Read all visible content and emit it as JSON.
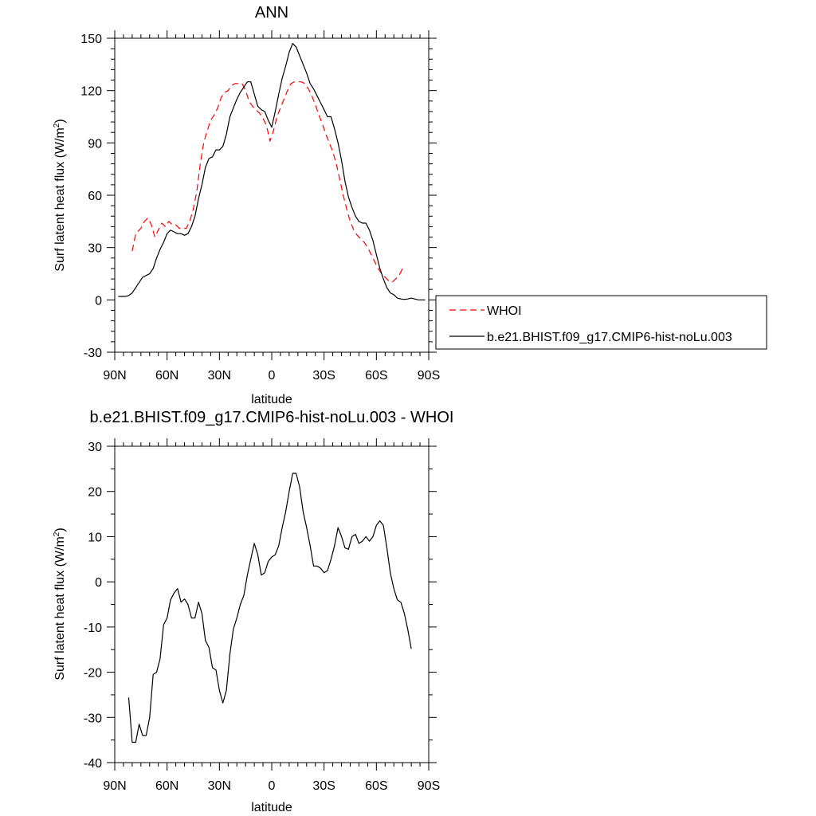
{
  "chart_data": [
    {
      "type": "line",
      "title": "ANN",
      "xlabel": "latitude",
      "ylabel": "Surf latent heat flux (W/m",
      "ylabel_sup": "2",
      "ylabel_close": ")",
      "xlim": [
        -90,
        90
      ],
      "ylim": [
        -30,
        150
      ],
      "x_direction": "north-to-south",
      "xticks": [
        {
          "v": -90,
          "label": "90N"
        },
        {
          "v": -60,
          "label": "60N"
        },
        {
          "v": -30,
          "label": "30N"
        },
        {
          "v": 0,
          "label": "0"
        },
        {
          "v": 30,
          "label": "30S"
        },
        {
          "v": 60,
          "label": "60S"
        },
        {
          "v": 90,
          "label": "90S"
        }
      ],
      "yticks": [
        {
          "v": -30,
          "label": "-30"
        },
        {
          "v": 0,
          "label": "0"
        },
        {
          "v": 30,
          "label": "30"
        },
        {
          "v": 60,
          "label": "60"
        },
        {
          "v": 90,
          "label": "90"
        },
        {
          "v": 120,
          "label": "120"
        },
        {
          "v": 150,
          "label": "150"
        }
      ],
      "grid": false,
      "legend_placement": "right",
      "series": [
        {
          "name": "WHOI",
          "color": "#ff0000",
          "dash": "dashed",
          "points": [
            [
              -80,
              28
            ],
            [
              -78,
              38
            ],
            [
              -76,
              40
            ],
            [
              -75,
              41
            ],
            [
              -73,
              45
            ],
            [
              -71,
              47
            ],
            [
              -69,
              43
            ],
            [
              -67,
              36
            ],
            [
              -65,
              40
            ],
            [
              -63,
              44
            ],
            [
              -61,
              42
            ],
            [
              -59,
              45
            ],
            [
              -57,
              43
            ],
            [
              -55,
              43
            ],
            [
              -53,
              41
            ],
            [
              -51,
              41
            ],
            [
              -49,
              41
            ],
            [
              -47,
              45
            ],
            [
              -45,
              52
            ],
            [
              -43,
              62
            ],
            [
              -41,
              78
            ],
            [
              -39,
              90
            ],
            [
              -37,
              97
            ],
            [
              -35,
              103
            ],
            [
              -33,
              106
            ],
            [
              -31,
              110
            ],
            [
              -29,
              116
            ],
            [
              -27,
              119
            ],
            [
              -25,
              120
            ],
            [
              -23,
              123
            ],
            [
              -21,
              124
            ],
            [
              -19,
              124
            ],
            [
              -17,
              124
            ],
            [
              -15,
              120
            ],
            [
              -13,
              114
            ],
            [
              -11,
              111
            ],
            [
              -9,
              109
            ],
            [
              -7,
              107
            ],
            [
              -5,
              104
            ],
            [
              -3,
              100
            ],
            [
              -1,
              91
            ],
            [
              1,
              97
            ],
            [
              3,
              105
            ],
            [
              5,
              110
            ],
            [
              7,
              115
            ],
            [
              9,
              120
            ],
            [
              11,
              124
            ],
            [
              13,
              125
            ],
            [
              15,
              125
            ],
            [
              17,
              125
            ],
            [
              19,
              124
            ],
            [
              21,
              121
            ],
            [
              23,
              117
            ],
            [
              25,
              112
            ],
            [
              27,
              106
            ],
            [
              29,
              101
            ],
            [
              31,
              95
            ],
            [
              33,
              90
            ],
            [
              35,
              85
            ],
            [
              37,
              78
            ],
            [
              39,
              69
            ],
            [
              41,
              60
            ],
            [
              43,
              52
            ],
            [
              45,
              45
            ],
            [
              47,
              40
            ],
            [
              49,
              37
            ],
            [
              51,
              35
            ],
            [
              53,
              33
            ],
            [
              55,
              30
            ],
            [
              57,
              26
            ],
            [
              59,
              22
            ],
            [
              61,
              18
            ],
            [
              63,
              15
            ],
            [
              65,
              13
            ],
            [
              67,
              11
            ],
            [
              69,
              10
            ],
            [
              71,
              12
            ],
            [
              73,
              14
            ],
            [
              75,
              18
            ]
          ]
        },
        {
          "name": "b.e21.BHIST.f09_g17.CMIP6-hist-noLu.003",
          "color": "#000000",
          "dash": "solid",
          "points": [
            [
              -88,
              2
            ],
            [
              -86,
              2
            ],
            [
              -84,
              2
            ],
            [
              -82,
              2.5
            ],
            [
              -80,
              4
            ],
            [
              -78,
              7
            ],
            [
              -76,
              10
            ],
            [
              -74,
              13
            ],
            [
              -72,
              14
            ],
            [
              -70,
              15
            ],
            [
              -68,
              18
            ],
            [
              -66,
              24
            ],
            [
              -64,
              29
            ],
            [
              -62,
              33
            ],
            [
              -60,
              38
            ],
            [
              -58,
              40
            ],
            [
              -56,
              39
            ],
            [
              -54,
              38
            ],
            [
              -52,
              38
            ],
            [
              -50,
              37
            ],
            [
              -48,
              38
            ],
            [
              -46,
              42
            ],
            [
              -44,
              48
            ],
            [
              -42,
              58
            ],
            [
              -40,
              66
            ],
            [
              -38,
              76
            ],
            [
              -36,
              81
            ],
            [
              -34,
              82
            ],
            [
              -32,
              86
            ],
            [
              -30,
              86
            ],
            [
              -28,
              88
            ],
            [
              -26,
              95
            ],
            [
              -24,
              105
            ],
            [
              -22,
              110
            ],
            [
              -20,
              115
            ],
            [
              -18,
              119
            ],
            [
              -16,
              122
            ],
            [
              -14,
              125
            ],
            [
              -12,
              125
            ],
            [
              -10,
              118
            ],
            [
              -8,
              111
            ],
            [
              -6,
              109
            ],
            [
              -4,
              108
            ],
            [
              -2,
              103
            ],
            [
              0,
              99
            ],
            [
              2,
              108
            ],
            [
              4,
              118
            ],
            [
              6,
              127
            ],
            [
              8,
              134
            ],
            [
              10,
              142
            ],
            [
              12,
              147
            ],
            [
              14,
              145
            ],
            [
              16,
              140
            ],
            [
              18,
              135
            ],
            [
              20,
              130
            ],
            [
              22,
              124
            ],
            [
              24,
              121
            ],
            [
              26,
              117
            ],
            [
              28,
              113
            ],
            [
              30,
              109
            ],
            [
              32,
              105
            ],
            [
              34,
              105
            ],
            [
              36,
              98
            ],
            [
              38,
              90
            ],
            [
              40,
              80
            ],
            [
              42,
              68
            ],
            [
              44,
              59
            ],
            [
              46,
              53
            ],
            [
              48,
              48
            ],
            [
              50,
              45
            ],
            [
              52,
              44
            ],
            [
              54,
              44
            ],
            [
              56,
              40
            ],
            [
              58,
              34
            ],
            [
              60,
              26
            ],
            [
              62,
              18
            ],
            [
              64,
              12
            ],
            [
              66,
              7
            ],
            [
              68,
              4
            ],
            [
              70,
              3
            ],
            [
              72,
              1
            ],
            [
              74,
              0.5
            ],
            [
              76,
              0.3
            ],
            [
              78,
              0.5
            ],
            [
              80,
              1
            ],
            [
              82,
              0.5
            ],
            [
              84,
              0
            ],
            [
              86,
              0
            ],
            [
              88,
              0
            ]
          ]
        }
      ]
    },
    {
      "type": "line",
      "title": "b.e21.BHIST.f09_g17.CMIP6-hist-noLu.003 - WHOI",
      "xlabel": "latitude",
      "ylabel": "Surf latent heat flux (W/m",
      "ylabel_sup": "2",
      "ylabel_close": ")",
      "xlim": [
        -90,
        90
      ],
      "ylim": [
        -40,
        30
      ],
      "x_direction": "north-to-south",
      "xticks": [
        {
          "v": -90,
          "label": "90N"
        },
        {
          "v": -60,
          "label": "60N"
        },
        {
          "v": -30,
          "label": "30N"
        },
        {
          "v": 0,
          "label": "0"
        },
        {
          "v": 30,
          "label": "30S"
        },
        {
          "v": 60,
          "label": "60S"
        },
        {
          "v": 90,
          "label": "90S"
        }
      ],
      "yticks": [
        {
          "v": -40,
          "label": "-40"
        },
        {
          "v": -30,
          "label": "-30"
        },
        {
          "v": -20,
          "label": "-20"
        },
        {
          "v": -10,
          "label": "-10"
        },
        {
          "v": 0,
          "label": "0"
        },
        {
          "v": 10,
          "label": "10"
        },
        {
          "v": 20,
          "label": "20"
        },
        {
          "v": 30,
          "label": "30"
        }
      ],
      "grid": false,
      "series": [
        {
          "color": "#000000",
          "dash": "solid",
          "points": [
            [
              -82,
              -25.6
            ],
            [
              -80,
              -35.5
            ],
            [
              -78,
              -35.5
            ],
            [
              -76,
              -31.5
            ],
            [
              -74,
              -34
            ],
            [
              -72,
              -34
            ],
            [
              -70,
              -30
            ],
            [
              -68,
              -20.5
            ],
            [
              -66,
              -20
            ],
            [
              -64,
              -17
            ],
            [
              -62,
              -9.5
            ],
            [
              -60,
              -8
            ],
            [
              -58,
              -4
            ],
            [
              -56,
              -2.5
            ],
            [
              -54,
              -1.5
            ],
            [
              -52,
              -4.5
            ],
            [
              -50,
              -3.8
            ],
            [
              -48,
              -5
            ],
            [
              -46,
              -8
            ],
            [
              -44,
              -8
            ],
            [
              -42,
              -4.5
            ],
            [
              -40,
              -7
            ],
            [
              -38,
              -13
            ],
            [
              -36,
              -14.5
            ],
            [
              -34,
              -19
            ],
            [
              -32,
              -19.5
            ],
            [
              -30,
              -24
            ],
            [
              -28,
              -26.8
            ],
            [
              -26,
              -24
            ],
            [
              -24,
              -16
            ],
            [
              -22,
              -10.5
            ],
            [
              -20,
              -8
            ],
            [
              -18,
              -5
            ],
            [
              -16,
              -3
            ],
            [
              -14,
              1.5
            ],
            [
              -12,
              5
            ],
            [
              -10,
              8.5
            ],
            [
              -8,
              6
            ],
            [
              -6,
              1.5
            ],
            [
              -4,
              2
            ],
            [
              -2,
              4.5
            ],
            [
              0,
              5.5
            ],
            [
              2,
              6
            ],
            [
              4,
              8
            ],
            [
              6,
              12
            ],
            [
              8,
              15.5
            ],
            [
              10,
              20
            ],
            [
              12,
              24
            ],
            [
              14,
              24
            ],
            [
              16,
              21
            ],
            [
              18,
              15.5
            ],
            [
              20,
              12
            ],
            [
              22,
              8
            ],
            [
              24,
              3.5
            ],
            [
              26,
              3.5
            ],
            [
              28,
              3
            ],
            [
              30,
              2
            ],
            [
              32,
              2.5
            ],
            [
              34,
              5
            ],
            [
              36,
              8
            ],
            [
              38,
              12
            ],
            [
              40,
              10
            ],
            [
              42,
              7.5
            ],
            [
              44,
              7.2
            ],
            [
              46,
              10
            ],
            [
              48,
              10.5
            ],
            [
              50,
              8.5
            ],
            [
              52,
              9
            ],
            [
              54,
              10
            ],
            [
              56,
              9
            ],
            [
              58,
              10
            ],
            [
              60,
              12.5
            ],
            [
              62,
              13.5
            ],
            [
              64,
              12.5
            ],
            [
              66,
              7.5
            ],
            [
              68,
              2
            ],
            [
              70,
              -1.5
            ],
            [
              72,
              -4
            ],
            [
              74,
              -4.5
            ],
            [
              76,
              -7
            ],
            [
              78,
              -10.5
            ],
            [
              80,
              -14.8
            ]
          ]
        }
      ]
    }
  ]
}
